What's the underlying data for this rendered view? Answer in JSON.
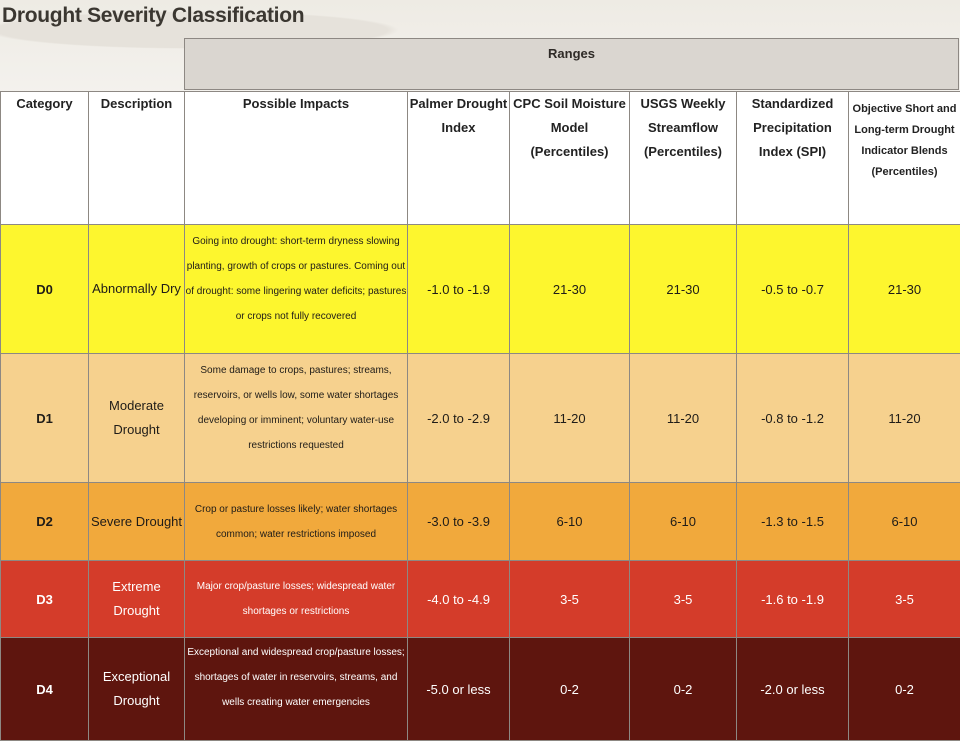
{
  "title": "Drought Severity Classification",
  "ranges_label": "Ranges",
  "headers": {
    "category": "Category",
    "description": "Description",
    "impacts": "Possible Impacts",
    "pdi": "Palmer Drought Index",
    "cpc": "CPC Soil Moisture Model (Percentiles)",
    "usgs": "USGS Weekly Streamflow (Percentiles)",
    "spi": "Standardized Precipitation Index (SPI)",
    "blend": "Objective Short and Long-term Drought Indicator Blends (Percentiles)"
  },
  "colors": {
    "D0": "#fdf62e",
    "D1": "#f6d18e",
    "D2": "#f1a93c",
    "D3": "#d43c2a",
    "D4": "#5e150e"
  },
  "rows": [
    {
      "category": "D0",
      "description": "Abnormally Dry",
      "impacts": "Going into drought: short-term dryness slowing planting, growth of crops or pastures. Coming out of drought: some lingering water deficits; pastures or crops not fully recovered",
      "pdi": "-1.0 to -1.9",
      "cpc": "21-30",
      "usgs": "21-30",
      "spi": "-0.5 to -0.7",
      "blend": "21-30"
    },
    {
      "category": "D1",
      "description": "Moderate Drought",
      "impacts": "Some damage to crops, pastures; streams, reservoirs, or wells low, some water shortages developing or imminent; voluntary water-use restrictions requested",
      "pdi": "-2.0 to -2.9",
      "cpc": "11-20",
      "usgs": "11-20",
      "spi": "-0.8 to -1.2",
      "blend": "11-20"
    },
    {
      "category": "D2",
      "description": "Severe Drought",
      "impacts": "Crop or pasture losses likely; water shortages common; water restrictions imposed",
      "pdi": "-3.0 to -3.9",
      "cpc": "6-10",
      "usgs": "6-10",
      "spi": "-1.3 to -1.5",
      "blend": "6-10"
    },
    {
      "category": "D3",
      "description": "Extreme Drought",
      "impacts": "Major crop/pasture losses; widespread water shortages or restrictions",
      "pdi": "-4.0 to -4.9",
      "cpc": "3-5",
      "usgs": "3-5",
      "spi": "-1.6 to -1.9",
      "blend": "3-5"
    },
    {
      "category": "D4",
      "description": "Exceptional Drought",
      "impacts": "Exceptional and widespread crop/pasture losses; shortages of water in reservoirs, streams, and wells creating water emergencies",
      "pdi": "-5.0 or less",
      "cpc": "0-2",
      "usgs": "0-2",
      "spi": "-2.0 or less",
      "blend": "0-2"
    }
  ]
}
